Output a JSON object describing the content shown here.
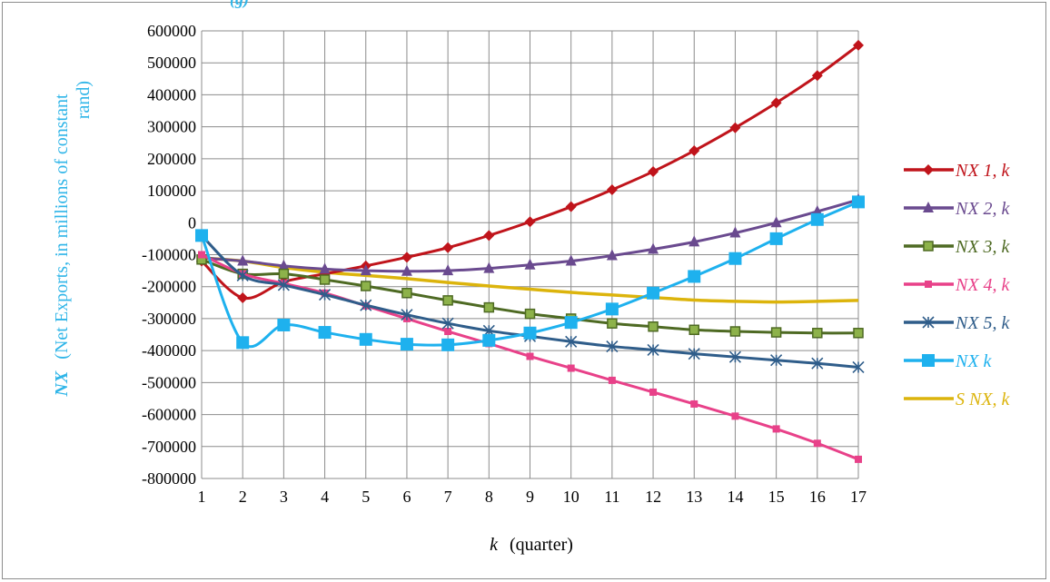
{
  "caption": "(g)",
  "chart_data": {
    "type": "line",
    "x": [
      1,
      2,
      3,
      4,
      5,
      6,
      7,
      8,
      9,
      10,
      11,
      12,
      13,
      14,
      15,
      16,
      17
    ],
    "xlabel_var": "k",
    "xlabel_unit": "(quarter)",
    "ylabel_var": "NX",
    "ylabel_line1": "(Net Exports, in millions of constant",
    "ylabel_line2": "rand)",
    "ylim": [
      -800000,
      600000
    ],
    "yticks": [
      600000,
      500000,
      400000,
      300000,
      200000,
      100000,
      0,
      -100000,
      -200000,
      -300000,
      -400000,
      -500000,
      -600000,
      -700000,
      -800000
    ],
    "grid": true,
    "legend_position": "right",
    "series": [
      {
        "name": "NX 1, k",
        "color": "#c0141b",
        "marker": "diamond",
        "values": [
          -120000,
          -235000,
          -185000,
          -160000,
          -135000,
          -108000,
          -78000,
          -40000,
          3000,
          50000,
          103000,
          160000,
          225000,
          297000,
          375000,
          460000,
          555000
        ]
      },
      {
        "name": "NX 2, k",
        "color": "#6a4a8f",
        "marker": "triangle",
        "values": [
          -110000,
          -120000,
          -135000,
          -145000,
          -150000,
          -152000,
          -150000,
          -143000,
          -132000,
          -120000,
          -103000,
          -83000,
          -60000,
          -32000,
          0,
          35000,
          72000
        ]
      },
      {
        "name": "NX 3, k",
        "color": "#4e6a23",
        "marker": "square-open",
        "values": [
          -115000,
          -160000,
          -160000,
          -178000,
          -198000,
          -220000,
          -243000,
          -265000,
          -285000,
          -300000,
          -315000,
          -325000,
          -335000,
          -340000,
          -343000,
          -345000,
          -345000
        ]
      },
      {
        "name": "NX 4, k",
        "color": "#e84189",
        "marker": "square-small",
        "values": [
          -100000,
          -160000,
          -190000,
          -220000,
          -260000,
          -300000,
          -340000,
          -378000,
          -418000,
          -455000,
          -493000,
          -530000,
          -567000,
          -605000,
          -645000,
          -690000,
          -740000
        ]
      },
      {
        "name": "NX 5, k",
        "color": "#2f5d8a",
        "marker": "star",
        "values": [
          -40000,
          -165000,
          -195000,
          -225000,
          -258000,
          -288000,
          -315000,
          -338000,
          -355000,
          -372000,
          -387000,
          -398000,
          -410000,
          -420000,
          -430000,
          -440000,
          -452000
        ]
      },
      {
        "name": "NX k",
        "color": "#1eb1ee",
        "marker": "square-large",
        "values": [
          -40000,
          -375000,
          -320000,
          -343000,
          -365000,
          -380000,
          -382000,
          -368000,
          -345000,
          -312000,
          -270000,
          -220000,
          -168000,
          -112000,
          -50000,
          10000,
          65000
        ]
      },
      {
        "name": "S NX, k",
        "color": "#dcb40c",
        "marker": "none",
        "values": [
          -110000,
          -120000,
          -140000,
          -155000,
          -165000,
          -175000,
          -187000,
          -198000,
          -208000,
          -218000,
          -226000,
          -234000,
          -242000,
          -246000,
          -248000,
          -246000,
          -243000
        ]
      }
    ]
  }
}
